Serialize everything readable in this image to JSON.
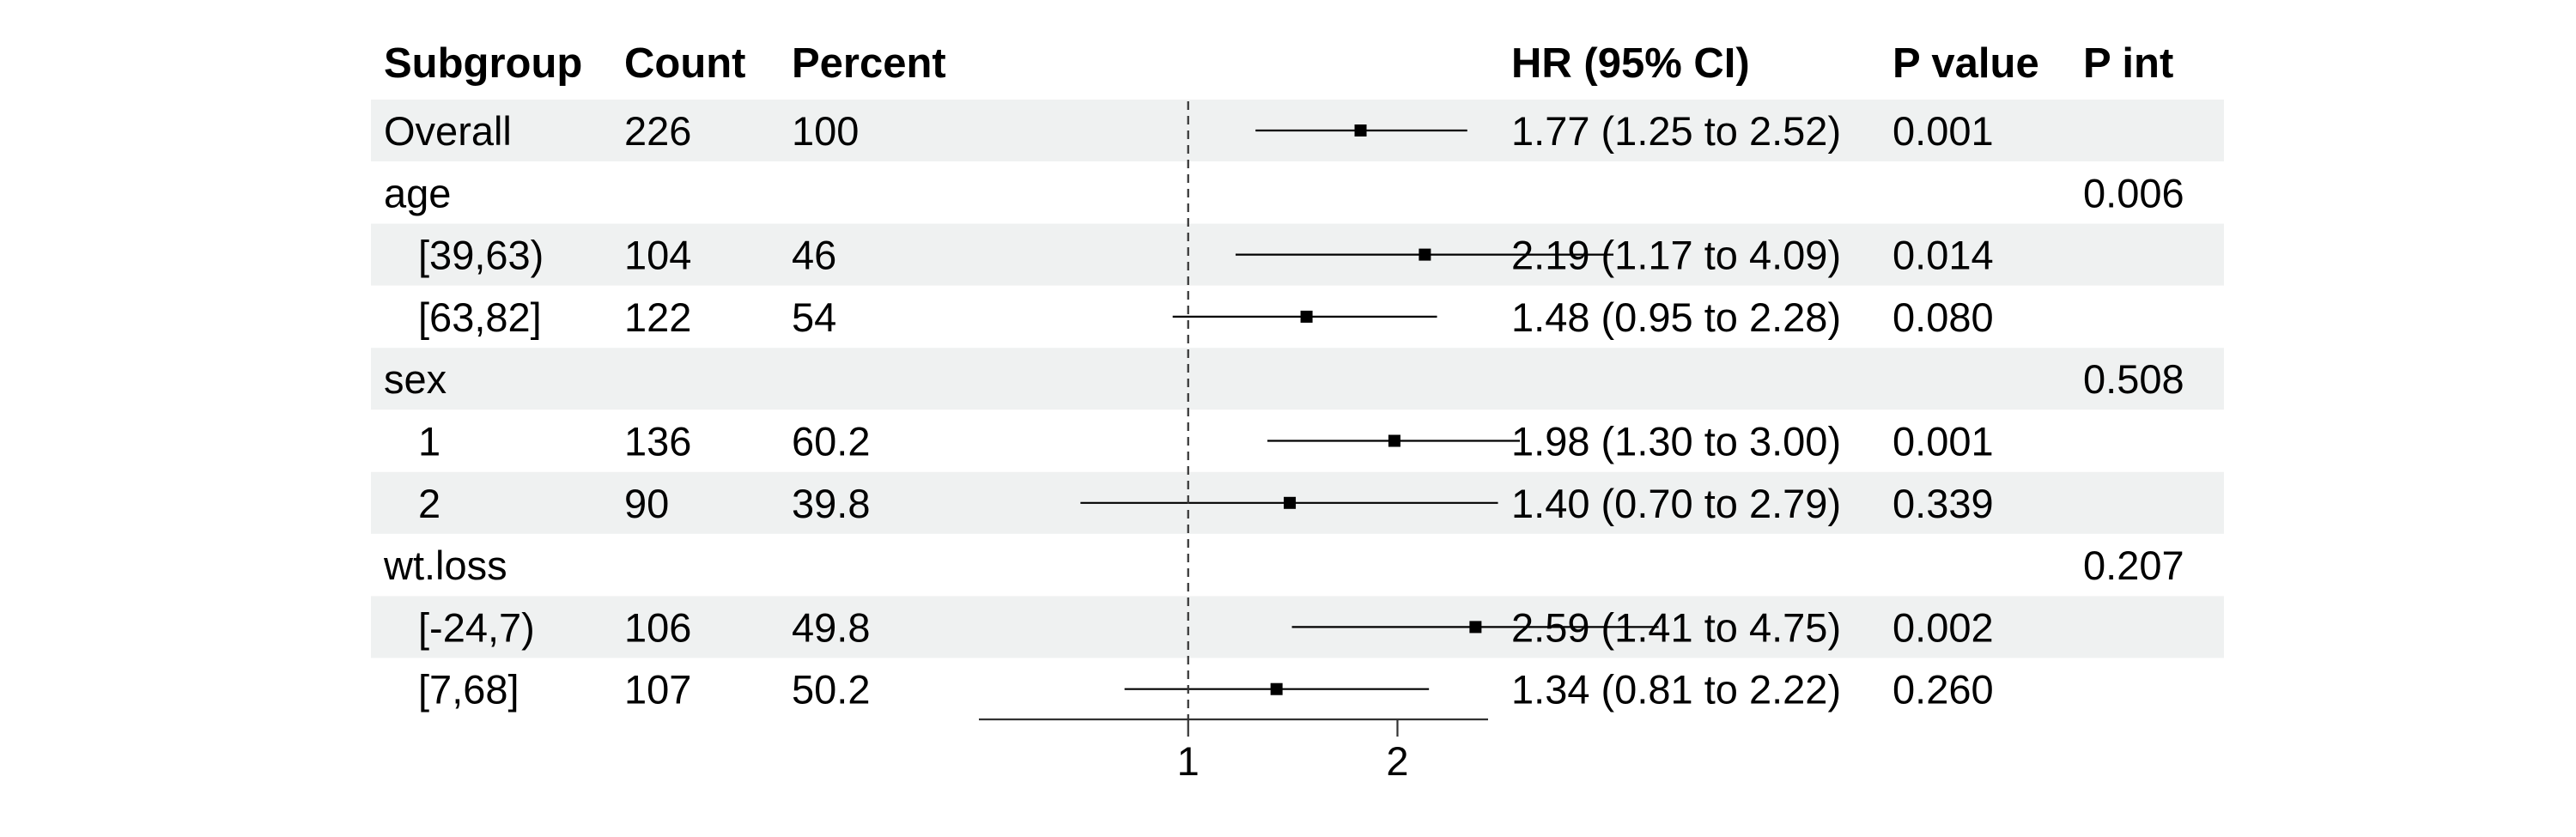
{
  "chart_data": {
    "type": "forest",
    "headers": {
      "subgroup": "Subgroup",
      "count": "Count",
      "percent": "Percent",
      "hr": "HR (95% CI)",
      "pvalue": "P value",
      "pint": "P int"
    },
    "rows": [
      {
        "label": "Overall",
        "indent": false,
        "count": "226",
        "percent": "100",
        "hr_text": "1.77 (1.25 to 2.52)",
        "pvalue": "0.001",
        "pint": "",
        "hr": 1.77,
        "lo": 1.25,
        "hi": 2.52,
        "shaded": true
      },
      {
        "label": "age",
        "indent": false,
        "count": "",
        "percent": "",
        "hr_text": "",
        "pvalue": "",
        "pint": "0.006",
        "shaded": false
      },
      {
        "label": "[39,63)",
        "indent": true,
        "count": "104",
        "percent": "46",
        "hr_text": "2.19 (1.17 to 4.09)",
        "pvalue": "0.014",
        "pint": "",
        "hr": 2.19,
        "lo": 1.17,
        "hi": 4.09,
        "shaded": true
      },
      {
        "label": "[63,82]",
        "indent": true,
        "count": "122",
        "percent": "54",
        "hr_text": "1.48 (0.95 to 2.28)",
        "pvalue": "0.080",
        "pint": "",
        "hr": 1.48,
        "lo": 0.95,
        "hi": 2.28,
        "shaded": false
      },
      {
        "label": "sex",
        "indent": false,
        "count": "",
        "percent": "",
        "hr_text": "",
        "pvalue": "",
        "pint": "0.508",
        "shaded": true
      },
      {
        "label": "1",
        "indent": true,
        "count": "136",
        "percent": "60.2",
        "hr_text": "1.98 (1.30 to 3.00)",
        "pvalue": "0.001",
        "pint": "",
        "hr": 1.98,
        "lo": 1.3,
        "hi": 3.0,
        "shaded": false
      },
      {
        "label": "2",
        "indent": true,
        "count": "90",
        "percent": "39.8",
        "hr_text": "1.40 (0.70 to 2.79)",
        "pvalue": "0.339",
        "pint": "",
        "hr": 1.4,
        "lo": 0.7,
        "hi": 2.79,
        "shaded": true
      },
      {
        "label": "wt.loss",
        "indent": false,
        "count": "",
        "percent": "",
        "hr_text": "",
        "pvalue": "",
        "pint": "0.207",
        "shaded": false
      },
      {
        "label": "[-24,7)",
        "indent": true,
        "count": "106",
        "percent": "49.8",
        "hr_text": "2.59 (1.41 to 4.75)",
        "pvalue": "0.002",
        "pint": "",
        "hr": 2.59,
        "lo": 1.41,
        "hi": 4.75,
        "shaded": true
      },
      {
        "label": "[7,68]",
        "indent": true,
        "count": "107",
        "percent": "50.2",
        "hr_text": "1.34 (0.81 to 2.22)",
        "pvalue": "0.260",
        "pint": "",
        "hr": 1.34,
        "lo": 0.81,
        "hi": 2.22,
        "shaded": false
      }
    ],
    "x_axis": {
      "scale": "log",
      "range": [
        0.5,
        2.7
      ],
      "ticks": [
        1,
        2
      ],
      "tick_labels": [
        "1",
        "2"
      ],
      "reference_line": 1
    },
    "colors": {
      "shade": "#eff1f1",
      "ink": "#000000",
      "reference": "#333333"
    }
  }
}
